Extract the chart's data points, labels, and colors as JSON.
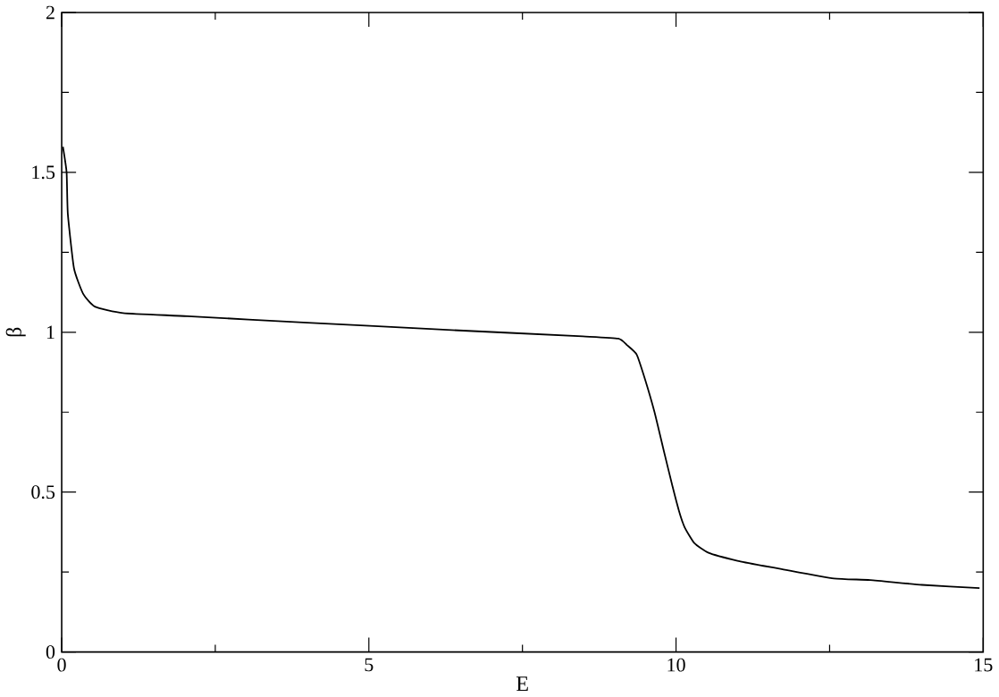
{
  "chart_data": {
    "type": "line",
    "xlabel": "E",
    "ylabel": "β",
    "xlim": [
      0,
      15
    ],
    "ylim": [
      0,
      2
    ],
    "xticks": [
      0,
      5,
      10,
      15
    ],
    "yticks": [
      0,
      0.5,
      1,
      1.5,
      2
    ],
    "series": [
      {
        "color": "#000000",
        "x": [
          0.02,
          0.08,
          0.1,
          0.2,
          0.35,
          0.54,
          1.0,
          2.05,
          4.0,
          6.0,
          8.48,
          9.06,
          9.2,
          9.36,
          9.5,
          9.65,
          9.8,
          9.94,
          10.05,
          10.14,
          10.3,
          10.53,
          11.0,
          11.4,
          11.7,
          12.57,
          13.16,
          14.0,
          14.94
        ],
        "values": [
          1.58,
          1.5,
          1.37,
          1.2,
          1.12,
          1.08,
          1.06,
          1.05,
          1.03,
          1.01,
          0.987,
          0.98,
          0.96,
          0.93,
          0.85,
          0.75,
          0.63,
          0.52,
          0.44,
          0.39,
          0.34,
          0.31,
          0.285,
          0.27,
          0.26,
          0.23,
          0.225,
          0.21,
          0.2
        ]
      }
    ]
  }
}
